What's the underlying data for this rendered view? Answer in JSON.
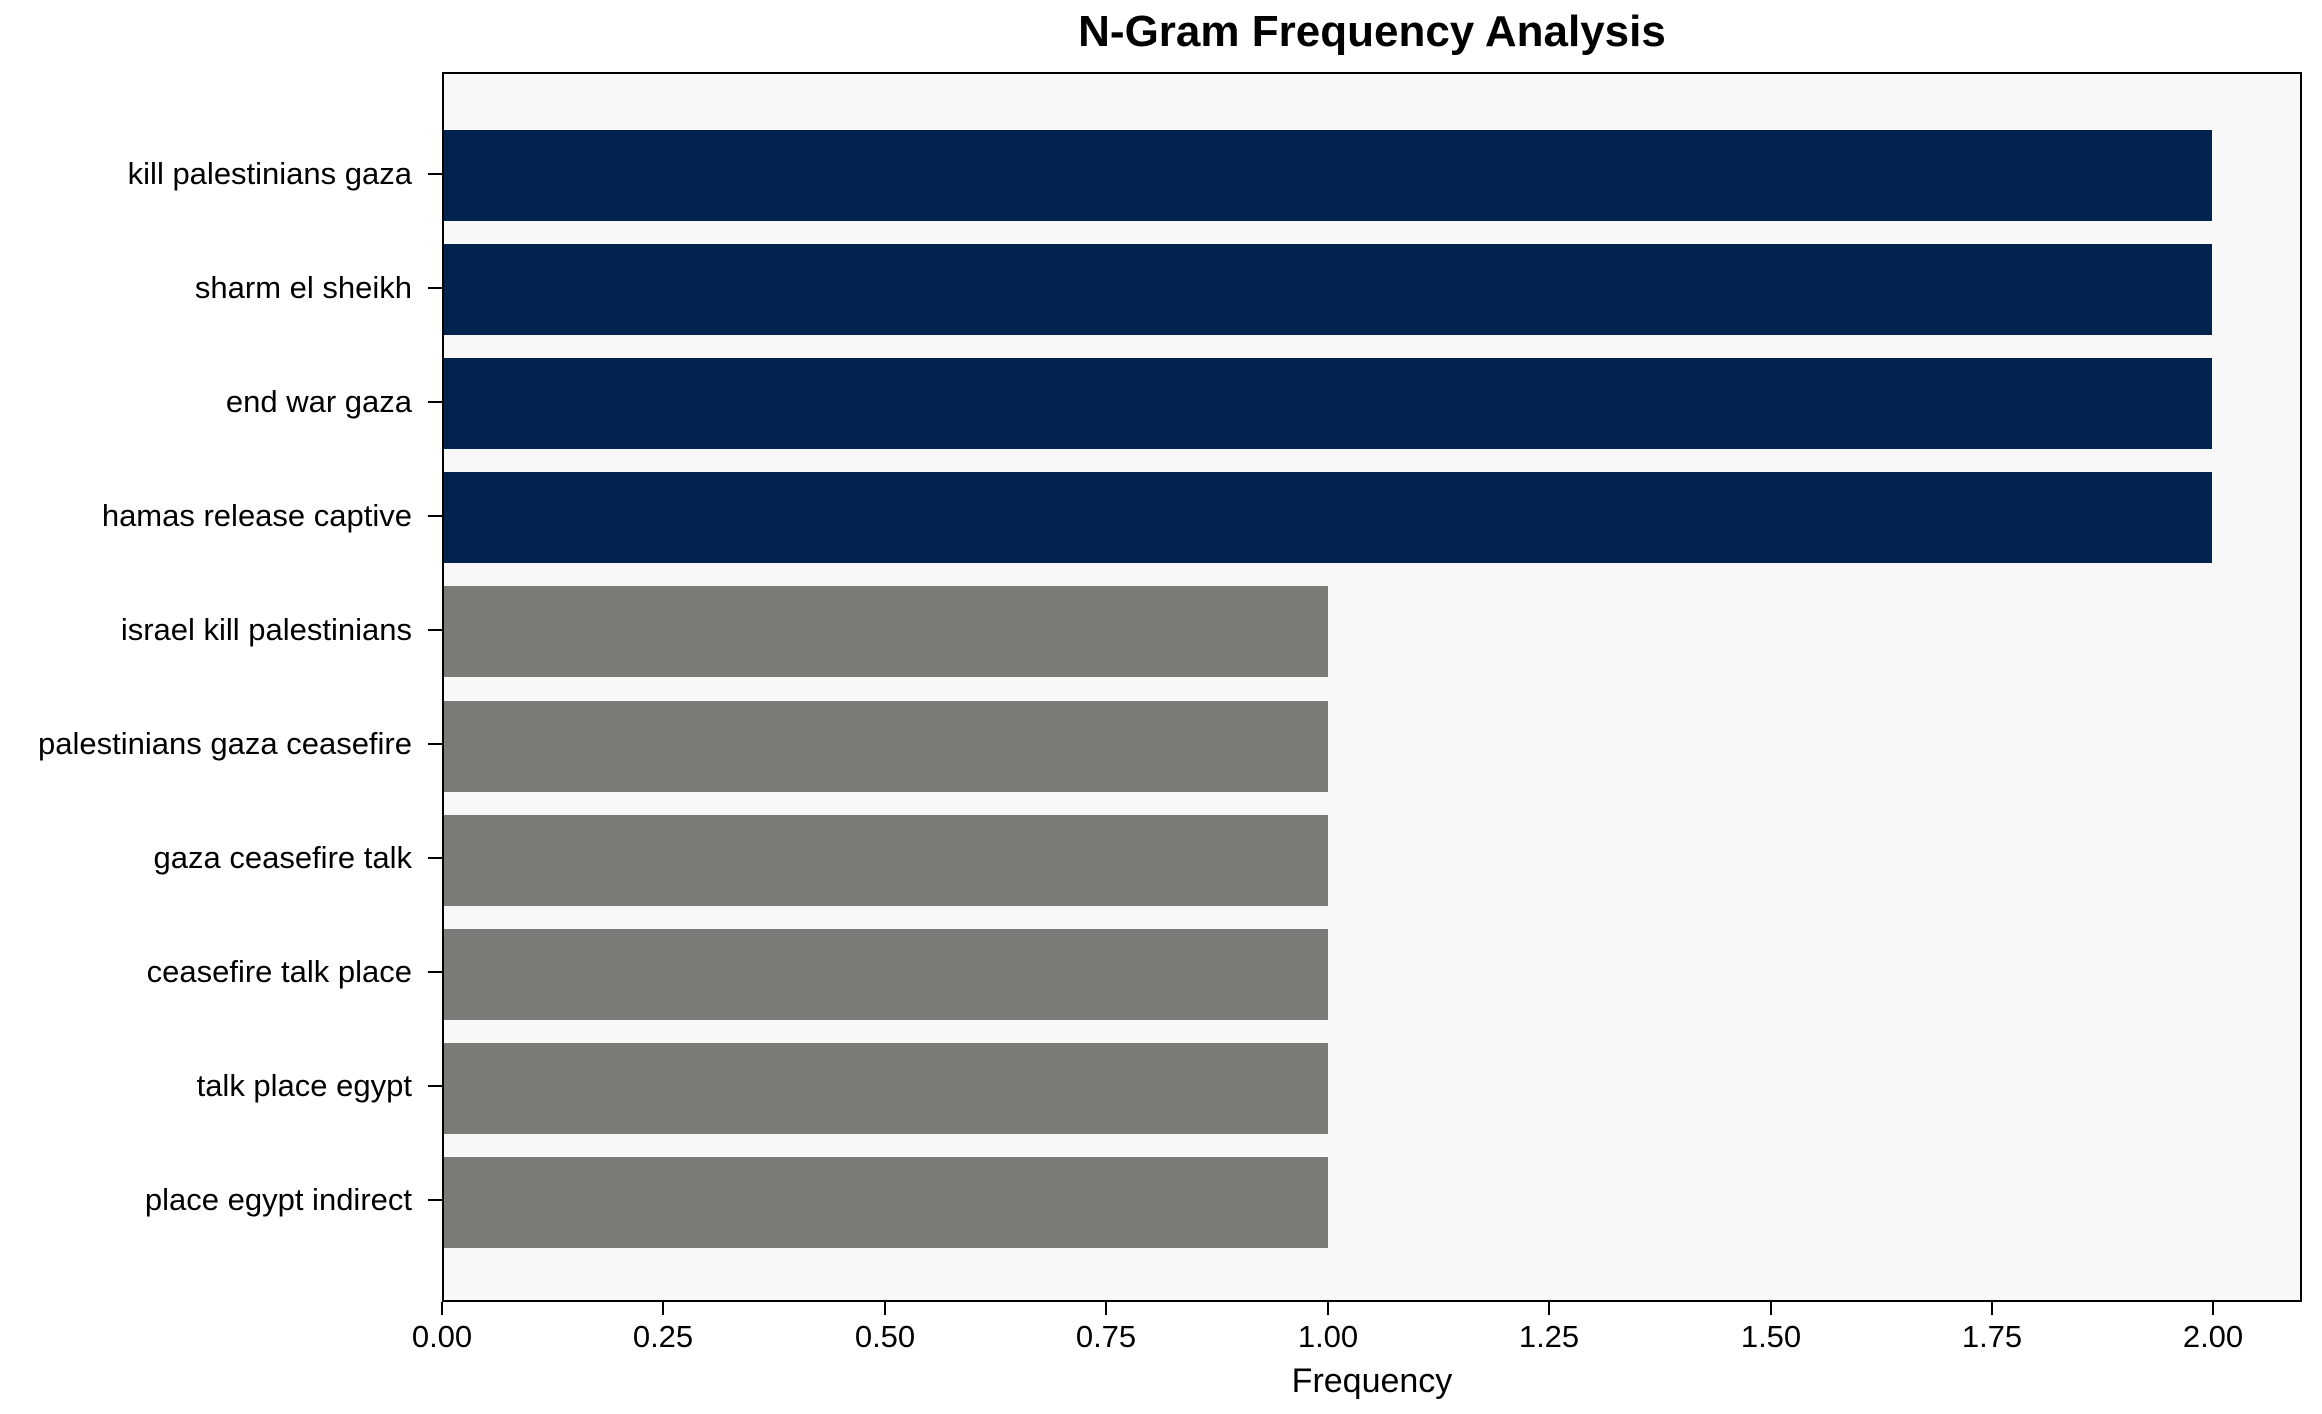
{
  "chart_data": {
    "type": "bar",
    "orientation": "horizontal",
    "title": "N-Gram Frequency Analysis",
    "xlabel": "Frequency",
    "ylabel": "",
    "categories": [
      "kill palestinians gaza",
      "sharm el sheikh",
      "end war gaza",
      "hamas release captive",
      "israel kill palestinians",
      "palestinians gaza ceasefire",
      "gaza ceasefire talk",
      "ceasefire talk place",
      "talk place egypt",
      "place egypt indirect"
    ],
    "values": [
      2,
      2,
      2,
      2,
      1,
      1,
      1,
      1,
      1,
      1
    ],
    "xlim": [
      0,
      2.1
    ],
    "x_tick_values": [
      0,
      0.25,
      0.5,
      0.75,
      1.0,
      1.25,
      1.5,
      1.75,
      2.0
    ],
    "x_tick_labels": [
      "0.00",
      "0.25",
      "0.50",
      "0.75",
      "1.00",
      "1.25",
      "1.50",
      "1.75",
      "2.00"
    ],
    "grid": false,
    "legend_position": "none",
    "colors": {
      "bar_highlight": "#02234d",
      "bar_default": "#7b7b77",
      "plot_background": "#f8f8f8",
      "figure_background": "#ffffff",
      "spine": "#000000",
      "text": "#000000"
    },
    "bar_colors": [
      "#02234d",
      "#02234d",
      "#02234d",
      "#02234d",
      "#7b7b77",
      "#7b7b77",
      "#7b7b77",
      "#7b7b77",
      "#7b7b77",
      "#7b7b77"
    ]
  }
}
